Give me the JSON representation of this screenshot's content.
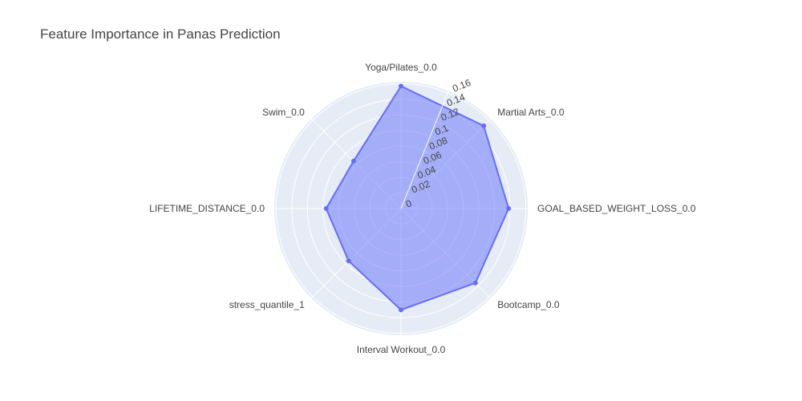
{
  "chart_data": {
    "type": "radar",
    "title": "Feature Importance in Panas Prediction",
    "categories": [
      "Yoga/Pilates_0.0",
      "Martial Arts_0.0",
      "GOAL_BASED_WEIGHT_LOSS_0.0",
      "Bootcamp_0.0",
      "Interval Workout_0.0",
      "stress_quantile_1",
      "LIFETIME_DISTANCE_0.0",
      "Swim_0.0"
    ],
    "values": [
      0.157,
      0.15,
      0.138,
      0.135,
      0.13,
      0.095,
      0.096,
      0.086
    ],
    "radial_ticks": [
      0,
      0.02,
      0.04,
      0.06,
      0.08,
      0.1,
      0.12,
      0.14,
      0.16
    ],
    "radial_range": [
      0,
      0.1625
    ],
    "colors": {
      "fill": "rgba(99,110,250,0.5)",
      "line": "#636efa",
      "grid_bg": "#e5ecf6",
      "grid_line": "#ffffff"
    }
  }
}
